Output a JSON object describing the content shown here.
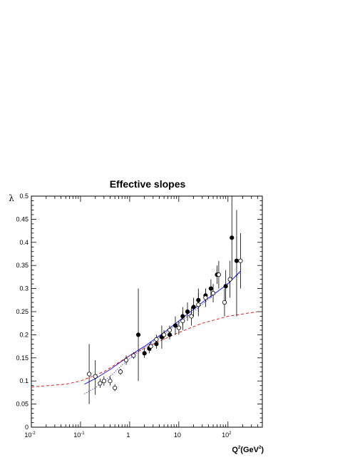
{
  "chart_data": {
    "type": "scatter",
    "title": "Effective slopes",
    "xlabel": "Q²(GeV²)",
    "xlabel_parts": {
      "q": "Q",
      "q_exp": "2",
      "unit_open": "(GeV",
      "unit_exp": "2",
      "unit_close": ")"
    },
    "ylabel": "λ",
    "xscale": "log",
    "xlim": [
      0.01,
      500
    ],
    "ylim": [
      0,
      0.5
    ],
    "grid": false,
    "legend": "none",
    "x_tick_labels": [
      {
        "base": "10",
        "exp": "-2",
        "x": 0.01
      },
      {
        "base": "10",
        "exp": "-1",
        "x": 0.1
      },
      {
        "base": "1",
        "exp": "",
        "x": 1
      },
      {
        "base": "10",
        "exp": "",
        "x": 10
      },
      {
        "base": "10",
        "exp": "2",
        "x": 100
      }
    ],
    "y_tick_labels": [
      "0",
      "0.05",
      "0.1",
      "0.15",
      "0.2",
      "0.25",
      "0.3",
      "0.35",
      "0.4",
      "0.45",
      "0.5"
    ],
    "series": [
      {
        "marker": "filled-circle",
        "color": "#000000",
        "points": [
          {
            "x": 1.5,
            "y": 0.2,
            "lo": 0.1,
            "hi": 0.3
          },
          {
            "x": 2.0,
            "y": 0.16,
            "lo": 0.15,
            "hi": 0.17
          },
          {
            "x": 2.5,
            "y": 0.17,
            "lo": 0.16,
            "hi": 0.18
          },
          {
            "x": 3.5,
            "y": 0.18,
            "lo": 0.17,
            "hi": 0.19
          },
          {
            "x": 4.5,
            "y": 0.195,
            "lo": 0.17,
            "hi": 0.22
          },
          {
            "x": 6.5,
            "y": 0.2,
            "lo": 0.19,
            "hi": 0.21
          },
          {
            "x": 8.5,
            "y": 0.22,
            "lo": 0.2,
            "hi": 0.24
          },
          {
            "x": 12,
            "y": 0.24,
            "lo": 0.22,
            "hi": 0.26
          },
          {
            "x": 15,
            "y": 0.25,
            "lo": 0.23,
            "hi": 0.27
          },
          {
            "x": 20,
            "y": 0.26,
            "lo": 0.24,
            "hi": 0.28
          },
          {
            "x": 25,
            "y": 0.275,
            "lo": 0.25,
            "hi": 0.3
          },
          {
            "x": 35,
            "y": 0.285,
            "lo": 0.27,
            "hi": 0.3
          },
          {
            "x": 45,
            "y": 0.3,
            "lo": 0.28,
            "hi": 0.32
          },
          {
            "x": 60,
            "y": 0.33,
            "lo": 0.31,
            "hi": 0.35
          },
          {
            "x": 90,
            "y": 0.305,
            "lo": 0.27,
            "hi": 0.34
          },
          {
            "x": 120,
            "y": 0.41,
            "lo": 0.32,
            "hi": 0.5
          },
          {
            "x": 150,
            "y": 0.36,
            "lo": 0.24,
            "hi": 0.47
          }
        ]
      },
      {
        "marker": "open-circle",
        "color": "#000000",
        "points": [
          {
            "x": 0.15,
            "y": 0.115,
            "lo": 0.05,
            "hi": 0.18
          },
          {
            "x": 0.2,
            "y": 0.11,
            "lo": 0.07,
            "hi": 0.145
          },
          {
            "x": 0.25,
            "y": 0.095,
            "lo": 0.085,
            "hi": 0.105
          },
          {
            "x": 0.3,
            "y": 0.1,
            "lo": 0.09,
            "hi": 0.11
          },
          {
            "x": 0.4,
            "y": 0.1,
            "lo": 0.09,
            "hi": 0.11
          },
          {
            "x": 0.5,
            "y": 0.085,
            "lo": 0.078,
            "hi": 0.093
          },
          {
            "x": 0.65,
            "y": 0.12,
            "lo": 0.113,
            "hi": 0.127
          },
          {
            "x": 0.85,
            "y": 0.145,
            "lo": 0.135,
            "hi": 0.155
          },
          {
            "x": 1.2,
            "y": 0.155,
            "lo": 0.148,
            "hi": 0.162
          },
          {
            "x": 2.7,
            "y": 0.175,
            "lo": 0.165,
            "hi": 0.185
          },
          {
            "x": 3.5,
            "y": 0.19,
            "lo": 0.18,
            "hi": 0.2
          },
          {
            "x": 5.0,
            "y": 0.2,
            "lo": 0.19,
            "hi": 0.21
          },
          {
            "x": 6.5,
            "y": 0.21,
            "lo": 0.2,
            "hi": 0.22
          },
          {
            "x": 10,
            "y": 0.215,
            "lo": 0.2,
            "hi": 0.23
          },
          {
            "x": 12,
            "y": 0.23,
            "lo": 0.21,
            "hi": 0.25
          },
          {
            "x": 18,
            "y": 0.24,
            "lo": 0.22,
            "hi": 0.26
          },
          {
            "x": 25,
            "y": 0.265,
            "lo": 0.24,
            "hi": 0.29
          },
          {
            "x": 35,
            "y": 0.28,
            "lo": 0.26,
            "hi": 0.3
          },
          {
            "x": 50,
            "y": 0.29,
            "lo": 0.27,
            "hi": 0.31
          },
          {
            "x": 65,
            "y": 0.33,
            "lo": 0.3,
            "hi": 0.36
          },
          {
            "x": 85,
            "y": 0.27,
            "lo": 0.24,
            "hi": 0.3
          },
          {
            "x": 110,
            "y": 0.32,
            "lo": 0.28,
            "hi": 0.36
          },
          {
            "x": 180,
            "y": 0.36,
            "lo": 0.3,
            "hi": 0.42
          }
        ]
      }
    ],
    "curves": [
      {
        "style": "solid",
        "color": "#1a1aff",
        "points": [
          [
            0.12,
            0.093
          ],
          [
            0.2,
            0.105
          ],
          [
            0.4,
            0.125
          ],
          [
            1,
            0.155
          ],
          [
            2,
            0.175
          ],
          [
            5,
            0.205
          ],
          [
            10,
            0.23
          ],
          [
            30,
            0.27
          ],
          [
            100,
            0.31
          ],
          [
            180,
            0.338
          ]
        ]
      },
      {
        "style": "dotted",
        "color": "#3333cc",
        "points": [
          [
            0.12,
            0.072
          ],
          [
            0.2,
            0.085
          ],
          [
            0.4,
            0.11
          ],
          [
            0.8,
            0.14
          ],
          [
            1.5,
            0.163
          ],
          [
            3,
            0.185
          ],
          [
            6,
            0.208
          ],
          [
            15,
            0.24
          ],
          [
            50,
            0.285
          ],
          [
            180,
            0.335
          ]
        ]
      },
      {
        "style": "dashed",
        "color": "#e02020",
        "points": [
          [
            0.01,
            0.087
          ],
          [
            0.05,
            0.093
          ],
          [
            0.1,
            0.1
          ],
          [
            0.3,
            0.12
          ],
          [
            1,
            0.155
          ],
          [
            3,
            0.18
          ],
          [
            10,
            0.205
          ],
          [
            30,
            0.225
          ],
          [
            100,
            0.24
          ],
          [
            400,
            0.25
          ]
        ]
      }
    ]
  }
}
